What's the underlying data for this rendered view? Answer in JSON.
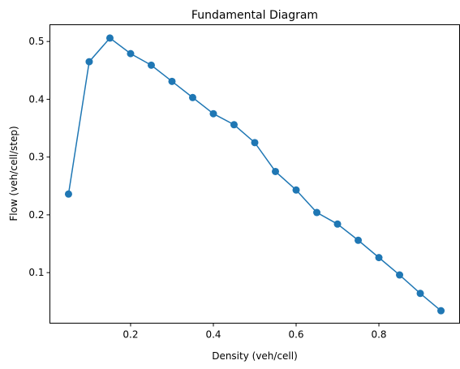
{
  "chart_data": {
    "type": "line",
    "title": "Fundamental Diagram",
    "xlabel": "Density (veh/cell)",
    "ylabel": "Flow (veh/cell/step)",
    "xlim": [
      0.005,
      0.995
    ],
    "ylim": [
      0.0125,
      0.529
    ],
    "xticks": [
      0.2,
      0.4,
      0.6,
      0.8
    ],
    "yticks": [
      0.1,
      0.2,
      0.3,
      0.4,
      0.5
    ],
    "grid": false,
    "marker": "circle",
    "color": "#1f77b4",
    "series": [
      {
        "x": [
          0.05,
          0.1,
          0.15,
          0.2,
          0.25,
          0.3,
          0.35,
          0.4,
          0.45,
          0.5,
          0.55,
          0.6,
          0.65,
          0.7,
          0.75,
          0.8,
          0.85,
          0.9,
          0.95
        ],
        "y": [
          0.236,
          0.465,
          0.506,
          0.479,
          0.459,
          0.431,
          0.403,
          0.375,
          0.356,
          0.325,
          0.275,
          0.243,
          0.204,
          0.184,
          0.156,
          0.126,
          0.096,
          0.064,
          0.034
        ]
      }
    ]
  }
}
